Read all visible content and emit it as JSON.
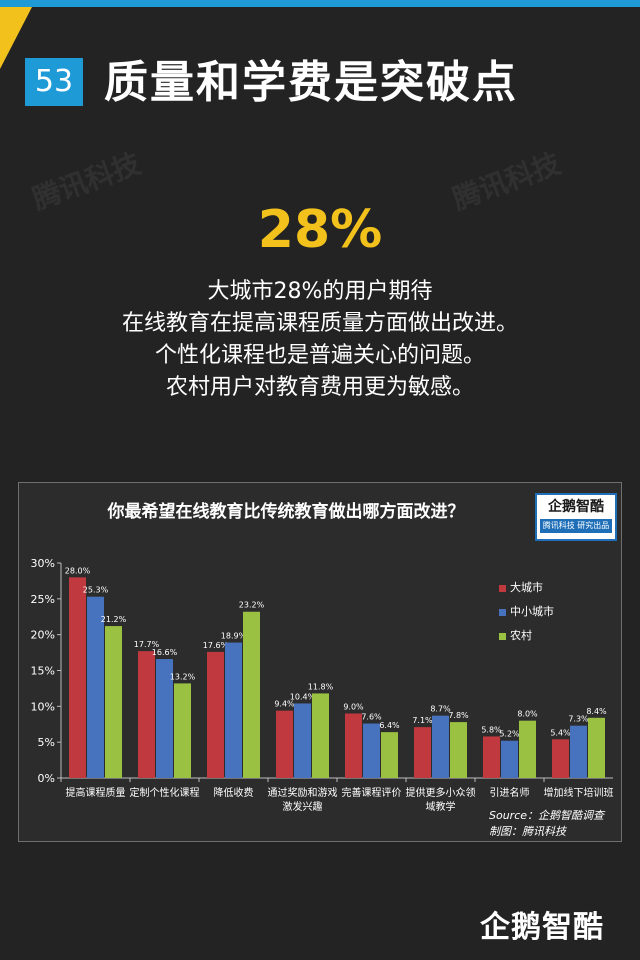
{
  "header": {
    "page_number": "53",
    "title": "质量和学费是突破点"
  },
  "watermark": "腾讯科技",
  "highlight": {
    "stat": "28%",
    "lines": [
      "大城市28%的用户期待",
      "在线教育在提高课程质量方面做出改进。",
      "个性化课程也是普遍关心的问题。",
      "农村用户对教育费用更为敏感。"
    ]
  },
  "chart_logo": {
    "name": "企鹅智酷",
    "sub": "腾讯科技 研究出品"
  },
  "chart_data": {
    "type": "bar",
    "title": "你最希望在线教育比传统教育做出哪方面改进？",
    "categories": [
      [
        "提高课程质量"
      ],
      [
        "定制个性化课程"
      ],
      [
        "降低收费"
      ],
      [
        "通过奖励和游戏",
        "激发兴趣"
      ],
      [
        "完善课程评价"
      ],
      [
        "提供更多小众领",
        "域教学"
      ],
      [
        "引进名师"
      ],
      [
        "增加线下培训班"
      ]
    ],
    "series": [
      {
        "name": "大城市",
        "color": "#c0393f",
        "values": [
          28.0,
          17.7,
          17.6,
          9.4,
          9.0,
          7.1,
          5.8,
          5.4
        ],
        "labels": [
          "28.0%",
          "17.7%",
          "17.6%",
          "9.4%",
          "9.0%",
          "7.1%",
          "5.8%",
          "5.4%"
        ]
      },
      {
        "name": "中小城市",
        "color": "#4672be",
        "values": [
          25.3,
          16.6,
          18.9,
          10.4,
          7.6,
          8.7,
          5.2,
          7.3
        ],
        "labels": [
          "25.3%",
          "16.6%",
          "18.9%",
          "10.4%",
          "7.6%",
          "8.7%",
          "5.2%",
          "7.3%"
        ]
      },
      {
        "name": "农村",
        "color": "#9ac142",
        "values": [
          21.2,
          13.2,
          23.2,
          11.8,
          6.4,
          7.8,
          8.0,
          8.4
        ],
        "labels": [
          "21.2%",
          "13.2%",
          "23.2%",
          "11.8%",
          "6.4%",
          "7.8%",
          "8.0%",
          "8.4%"
        ]
      }
    ],
    "y_ticks": [
      "0%",
      "5%",
      "10%",
      "15%",
      "20%",
      "25%",
      "30%"
    ],
    "ylim": [
      0,
      30
    ],
    "grid": false,
    "legend_position": "right"
  },
  "source": {
    "line1": "Source：企鹅智酷调查",
    "line2": "制图：腾讯科技"
  },
  "footer_logo": "企鹅智酷"
}
